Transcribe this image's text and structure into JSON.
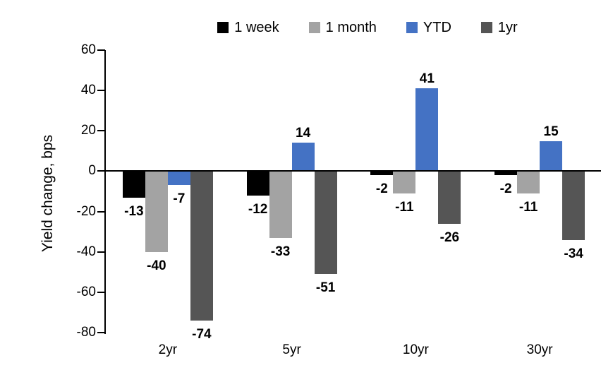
{
  "chart_data": {
    "type": "bar",
    "title": "",
    "ylabel": "Yield change, bps",
    "xlabel": "",
    "categories": [
      "2yr",
      "5yr",
      "10yr",
      "30yr"
    ],
    "series": [
      {
        "name": "1 week",
        "color": "#000000",
        "values": [
          -13,
          -12,
          -2,
          -2
        ]
      },
      {
        "name": "1 month",
        "color": "#A3A3A3",
        "values": [
          -40,
          -33,
          -11,
          -11
        ]
      },
      {
        "name": "YTD",
        "color": "#4472C4",
        "values": [
          -7,
          14,
          41,
          15
        ]
      },
      {
        "name": "1yr",
        "color": "#555555",
        "values": [
          -74,
          -51,
          -26,
          -34
        ]
      }
    ],
    "ylim": [
      -80,
      60
    ],
    "yticks": [
      60,
      40,
      20,
      0,
      -20,
      -40,
      -60,
      -80
    ],
    "grid": false,
    "legend_position": "top",
    "data_labels": true,
    "axis_color": "#000000"
  }
}
